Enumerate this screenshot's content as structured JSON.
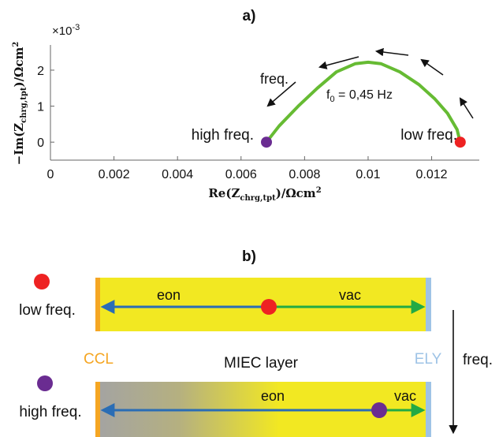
{
  "panel_a": {
    "label": "a)",
    "exponent_label": "×10",
    "exponent_power": "-3",
    "y_axis_label": "−Im(Z",
    "y_axis_sub": "chrg,tpt",
    "y_axis_unit": ")/Ωcm",
    "y_axis_unit_sup": "2",
    "x_axis_label": "Re(Z",
    "x_axis_sub": "chrg,tpt",
    "x_axis_unit": ")/Ωcm",
    "x_axis_unit_sup": "2",
    "y_ticks": [
      "0",
      "1",
      "2"
    ],
    "x_ticks": [
      "0",
      "0.002",
      "0.004",
      "0.006",
      "0.008",
      "0.01",
      "0.012"
    ],
    "annotation_freq": "freq.",
    "annotation_f0_main": "f",
    "annotation_f0_sub": "0",
    "annotation_f0_value": " = 0,45 Hz",
    "label_high_freq": "high freq.",
    "label_low_freq": "low freq.",
    "colors": {
      "curve": "#66bb33",
      "high_point": "#6a2c91",
      "low_point": "#ee2222"
    }
  },
  "chart_data": {
    "type": "line",
    "title": "a)",
    "xlabel": "Re(Z_chrg,tpt)/Ωcm²",
    "ylabel": "−Im(Z_chrg,tpt)/Ωcm²",
    "xlim": [
      0,
      0.0135
    ],
    "ylim": [
      -0.0005,
      0.0027
    ],
    "grid": false,
    "series": [
      {
        "x": [
          0.0068,
          0.0072,
          0.0078,
          0.0084,
          0.009,
          0.0096,
          0.01,
          0.0104,
          0.011,
          0.0116,
          0.0121,
          0.0125,
          0.0128,
          0.0129
        ],
        "values": [
          0.0,
          0.00045,
          0.001,
          0.0015,
          0.00195,
          0.00218,
          0.00222,
          0.00218,
          0.00195,
          0.0016,
          0.0012,
          0.0008,
          0.00035,
          0.0
        ]
      }
    ],
    "points": [
      {
        "label": "high freq.",
        "x": 0.0068,
        "y": 0.0
      },
      {
        "label": "low freq.",
        "x": 0.0129,
        "y": 0.0
      }
    ]
  },
  "panel_b": {
    "label": "b)",
    "low_freq_label": "low freq.",
    "high_freq_label": "high freq.",
    "eon_label": "eon",
    "vac_label": "vac",
    "ccl_label": "CCL",
    "miec_label": "MIEC layer",
    "ely_label": "ELY",
    "freq_label": "freq.",
    "colors": {
      "layer_yellow": "#f2e822",
      "layer_grey": "#a3a3a3",
      "ccl_orange": "#f5a623",
      "ely_blue": "#9ec3e6",
      "eon_arrow": "#2a6db5",
      "vac_arrow": "#22aa44",
      "low_point": "#ee2222",
      "high_point": "#6a2c91"
    }
  }
}
